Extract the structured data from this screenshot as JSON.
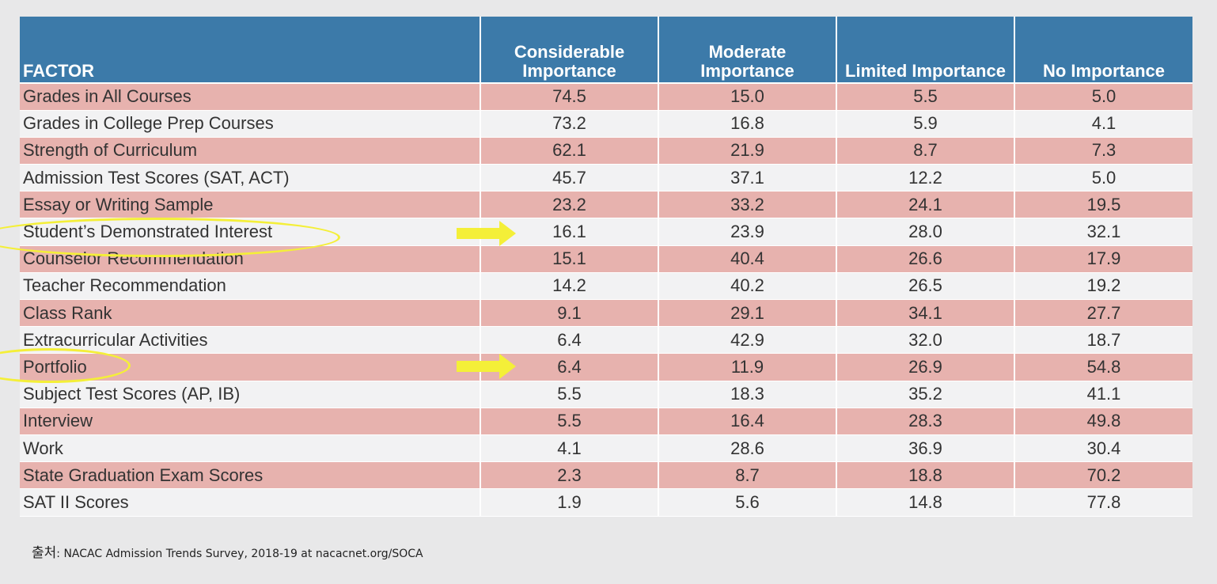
{
  "chart_data": {
    "type": "table",
    "headers": [
      "FACTOR",
      "Considerable Importance",
      "Moderate Importance",
      "Limited Importance",
      "No Importance"
    ],
    "rows": [
      {
        "factor": "Grades in All Courses",
        "values": [
          "74.5",
          "15.0",
          "5.5",
          "5.0"
        ]
      },
      {
        "factor": "Grades in College Prep Courses",
        "values": [
          "73.2",
          "16.8",
          "5.9",
          "4.1"
        ]
      },
      {
        "factor": "Strength of Curriculum",
        "values": [
          "62.1",
          "21.9",
          "8.7",
          "7.3"
        ]
      },
      {
        "factor": "Admission Test Scores (SAT, ACT)",
        "values": [
          "45.7",
          "37.1",
          "12.2",
          "5.0"
        ]
      },
      {
        "factor": "Essay or Writing Sample",
        "values": [
          "23.2",
          "33.2",
          "24.1",
          "19.5"
        ]
      },
      {
        "factor": "Student’s Demonstrated Interest",
        "values": [
          "16.1",
          "23.9",
          "28.0",
          "32.1"
        ]
      },
      {
        "factor": "Counselor Recommendation",
        "values": [
          "15.1",
          "40.4",
          "26.6",
          "17.9"
        ]
      },
      {
        "factor": "Teacher Recommendation",
        "values": [
          "14.2",
          "40.2",
          "26.5",
          "19.2"
        ]
      },
      {
        "factor": "Class Rank",
        "values": [
          "9.1",
          "29.1",
          "34.1",
          "27.7"
        ]
      },
      {
        "factor": "Extracurricular Activities",
        "values": [
          "6.4",
          "42.9",
          "32.0",
          "18.7"
        ]
      },
      {
        "factor": "Portfolio",
        "values": [
          "6.4",
          "11.9",
          "26.9",
          "54.8"
        ]
      },
      {
        "factor": "Subject Test Scores (AP, IB)",
        "values": [
          "5.5",
          "18.3",
          "35.2",
          "41.1"
        ]
      },
      {
        "factor": "Interview",
        "values": [
          "5.5",
          "16.4",
          "28.3",
          "49.8"
        ]
      },
      {
        "factor": "Work",
        "values": [
          "4.1",
          "28.6",
          "36.9",
          "30.4"
        ]
      },
      {
        "factor": "State Graduation Exam Scores",
        "values": [
          "2.3",
          "8.7",
          "18.8",
          "70.2"
        ]
      },
      {
        "factor": "SAT II Scores",
        "values": [
          "1.9",
          "5.6",
          "14.8",
          "77.8"
        ]
      }
    ],
    "highlighted_rows": [
      "Student’s Demonstrated Interest",
      "Portfolio"
    ]
  },
  "colors": {
    "header_bg": "#3c7aa9",
    "odd_row_bg": "#e7b2ae",
    "even_row_bg": "#f2f2f3",
    "highlight": "#f4ef38"
  },
  "annotations": {
    "ellipse_icon": "yellow-ellipse-highlight",
    "arrow_icon": "yellow-right-arrow"
  },
  "source": {
    "label": "출처",
    "separator": ": ",
    "text": "NACAC Admission Trends Survey, 2018-19 at nacacnet.org/SOCA"
  }
}
